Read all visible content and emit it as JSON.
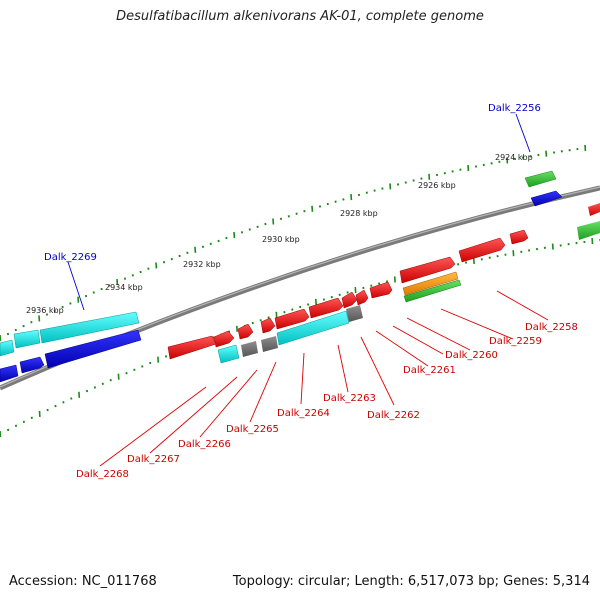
{
  "title": "Desulfatibacillum alkenivorans AK-01, complete genome",
  "footer": {
    "accession": "Accession: NC_011768",
    "topology": "Topology: circular; Length: 6,517,073 bp; Genes: 5,314"
  },
  "colors": {
    "backbone": "#808080",
    "tick": "#1a8a1a",
    "label_red": "#cc0000",
    "label_blue": "#0000cc",
    "cds_red": "#ff0000",
    "cds_cyan": "#00e5e5",
    "cds_blue": "#0000ee",
    "cds_gray": "#707070",
    "cds_green": "#33cc33",
    "cds_orange": "#ff9900"
  },
  "kbp_labels": [
    "2924 kbp",
    "2926 kbp",
    "2928 kbp",
    "2930 kbp",
    "2932 kbp",
    "2934 kbp",
    "2936 kbp"
  ],
  "gene_labels": [
    {
      "id": "Dalk_2256",
      "color": "blue"
    },
    {
      "id": "Dalk_2258",
      "color": "red"
    },
    {
      "id": "Dalk_2259",
      "color": "red"
    },
    {
      "id": "Dalk_2260",
      "color": "red"
    },
    {
      "id": "Dalk_2261",
      "color": "red"
    },
    {
      "id": "Dalk_2262",
      "color": "red"
    },
    {
      "id": "Dalk_2263",
      "color": "red"
    },
    {
      "id": "Dalk_2264",
      "color": "red"
    },
    {
      "id": "Dalk_2265",
      "color": "red"
    },
    {
      "id": "Dalk_2266",
      "color": "red"
    },
    {
      "id": "Dalk_2267",
      "color": "red"
    },
    {
      "id": "Dalk_2268",
      "color": "red"
    },
    {
      "id": "Dalk_2269",
      "color": "blue"
    }
  ]
}
